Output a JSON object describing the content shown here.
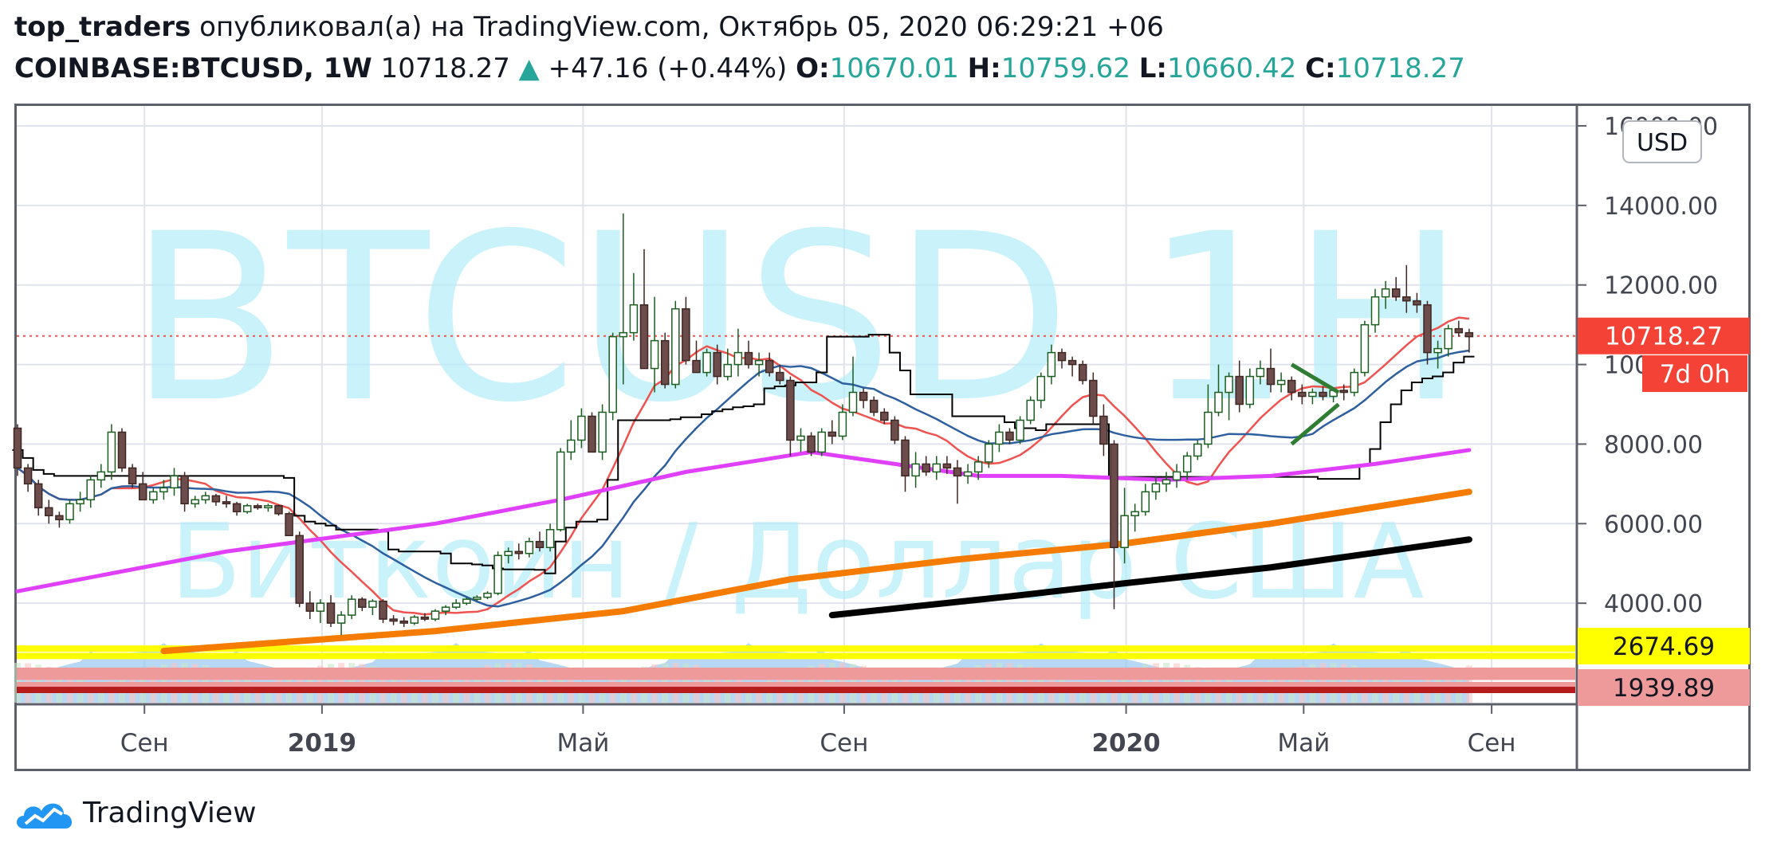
{
  "header": {
    "user": "top_traders",
    "published_text": "опубликовал(а) на TradingView.com, Октябрь 05, 2020 06:29:21 +06",
    "symbol": "COINBASE:BTCUSD, 1W",
    "last": "10718.27",
    "change": "+47.16 (+0.44%)",
    "open_label": "O:",
    "open": "10670.01",
    "high_label": "H:",
    "high": "10759.62",
    "low_label": "L:",
    "low": "10660.42",
    "close_label": "C:",
    "close": "10718.27"
  },
  "footer": {
    "brand": "TradingView"
  },
  "colors": {
    "up": "#26a69a",
    "down": "#ef5350",
    "candle_down_fill": "#6d4c4c",
    "candle_up_stroke": "#1b5e20"
  },
  "chart_data": {
    "type": "candlestick",
    "watermark": "BTCUSD 1H",
    "watermark_sub": "Биткоин / Доллар США",
    "currency": "USD",
    "ylim": [
      1500,
      16500
    ],
    "y_ticks": [
      4000,
      6000,
      8000,
      10000,
      12000,
      14000,
      16000
    ],
    "y_tick_labels": [
      "4000.00",
      "6000.00",
      "8000.00",
      "10000.00",
      "12000.00",
      "14000.00",
      "16000.00"
    ],
    "x_labels": [
      {
        "label": "Сен",
        "date": "2018-09",
        "bold": false
      },
      {
        "label": "2019",
        "date": "2019-01",
        "bold": true
      },
      {
        "label": "Май",
        "date": "2019-05",
        "bold": false
      },
      {
        "label": "Сен",
        "date": "2019-09",
        "bold": false
      },
      {
        "label": "2020",
        "date": "2020-01",
        "bold": true
      },
      {
        "label": "Май",
        "date": "2020-05",
        "bold": false
      },
      {
        "label": "Сен",
        "date": "2020-09",
        "bold": false
      }
    ],
    "price_badges": [
      {
        "value": 10718.27,
        "label": "10718.27",
        "bg": "#f44336",
        "fg": "#ffffff"
      },
      {
        "value": 9850,
        "label": "7d 0h",
        "bg": "#f44336",
        "fg": "#ffffff"
      },
      {
        "value": 2674.69,
        "label": "2674.69",
        "bg": "#ffff00",
        "fg": "#131722"
      },
      {
        "value": 1939.89,
        "label": "1939.89",
        "bg": "#ef9a9a",
        "fg": "#131722"
      }
    ],
    "horizontal_levels": [
      {
        "value": 2860,
        "color": "#ffff00"
      },
      {
        "value": 2674.69,
        "color": "#ffff00"
      },
      {
        "value": 2300,
        "color": "#ef9a9a"
      },
      {
        "value": 2150,
        "color": "#ef9a9a"
      },
      {
        "value": 1939.89,
        "color": "#ef9a9a"
      },
      {
        "value": 1820,
        "color": "#b71c1c"
      }
    ],
    "candles_ohlc": [
      [
        8400,
        8500,
        7200,
        7400
      ],
      [
        7400,
        7500,
        6800,
        7000
      ],
      [
        7000,
        7100,
        6200,
        6400
      ],
      [
        6400,
        6600,
        6000,
        6200
      ],
      [
        6200,
        6300,
        5900,
        6100
      ],
      [
        6100,
        6600,
        6000,
        6500
      ],
      [
        6500,
        6800,
        6300,
        6600
      ],
      [
        6600,
        7200,
        6400,
        7100
      ],
      [
        7100,
        7500,
        6900,
        7300
      ],
      [
        7300,
        8500,
        7100,
        8300
      ],
      [
        8300,
        8400,
        7300,
        7400
      ],
      [
        7400,
        7500,
        6900,
        7000
      ],
      [
        7000,
        7300,
        6600,
        6600
      ],
      [
        6600,
        6900,
        6500,
        6800
      ],
      [
        6800,
        7100,
        6600,
        6900
      ],
      [
        6900,
        7400,
        6700,
        7200
      ],
      [
        7200,
        7300,
        6300,
        6500
      ],
      [
        6500,
        6700,
        6400,
        6600
      ],
      [
        6600,
        6800,
        6500,
        6700
      ],
      [
        6700,
        6750,
        6450,
        6550
      ],
      [
        6550,
        6700,
        6400,
        6500
      ],
      [
        6500,
        6550,
        6200,
        6300
      ],
      [
        6300,
        6500,
        6250,
        6450
      ],
      [
        6450,
        6500,
        6350,
        6400
      ],
      [
        6400,
        6500,
        6300,
        6450
      ],
      [
        6450,
        6480,
        6200,
        6250
      ],
      [
        6250,
        6300,
        5800,
        5700
      ],
      [
        5700,
        5800,
        3900,
        4000
      ],
      [
        4000,
        4300,
        3600,
        3800
      ],
      [
        3800,
        4100,
        3500,
        4000
      ],
      [
        4000,
        4200,
        3400,
        3500
      ],
      [
        3500,
        3800,
        3200,
        3700
      ],
      [
        3700,
        4200,
        3600,
        4100
      ],
      [
        4100,
        4150,
        3800,
        3900
      ],
      [
        3900,
        4100,
        3700,
        4050
      ],
      [
        4050,
        4100,
        3500,
        3600
      ],
      [
        3600,
        3700,
        3450,
        3550
      ],
      [
        3550,
        3650,
        3400,
        3500
      ],
      [
        3500,
        3700,
        3450,
        3650
      ],
      [
        3650,
        3750,
        3550,
        3600
      ],
      [
        3600,
        3850,
        3550,
        3800
      ],
      [
        3800,
        3950,
        3700,
        3900
      ],
      [
        3900,
        4100,
        3850,
        4000
      ],
      [
        4000,
        4150,
        3950,
        4100
      ],
      [
        4100,
        4200,
        4050,
        4150
      ],
      [
        4150,
        4300,
        4100,
        4250
      ],
      [
        4250,
        5300,
        4200,
        5200
      ],
      [
        5200,
        5400,
        5000,
        5300
      ],
      [
        5300,
        5500,
        5100,
        5250
      ],
      [
        5250,
        5650,
        5150,
        5550
      ],
      [
        5550,
        5800,
        5300,
        5400
      ],
      [
        5400,
        6000,
        5300,
        5850
      ],
      [
        5850,
        7900,
        5800,
        7800
      ],
      [
        7800,
        8600,
        7600,
        8100
      ],
      [
        8100,
        8900,
        7900,
        8700
      ],
      [
        8700,
        8800,
        7800,
        7800
      ],
      [
        7800,
        9000,
        7600,
        8800
      ],
      [
        8800,
        10800,
        8600,
        10700
      ],
      [
        10700,
        13800,
        9500,
        10800
      ],
      [
        10800,
        12300,
        10600,
        11500
      ],
      [
        11500,
        12900,
        10000,
        9900
      ],
      [
        9900,
        11700,
        9300,
        10600
      ],
      [
        10600,
        10800,
        9400,
        9500
      ],
      [
        9500,
        11600,
        9400,
        11400
      ],
      [
        11400,
        11700,
        10000,
        10100
      ],
      [
        10100,
        10600,
        9800,
        9800
      ],
      [
        9800,
        10400,
        9700,
        10300
      ],
      [
        10300,
        10500,
        9500,
        9700
      ],
      [
        9700,
        10400,
        9600,
        10000
      ],
      [
        10000,
        10900,
        9700,
        10300
      ],
      [
        10300,
        10600,
        9900,
        10000
      ],
      [
        10000,
        10300,
        9700,
        10100
      ],
      [
        10100,
        10300,
        9700,
        9800
      ],
      [
        9800,
        10000,
        9500,
        9600
      ],
      [
        9600,
        9700,
        7700,
        8100
      ],
      [
        8100,
        8400,
        7800,
        8200
      ],
      [
        8200,
        8300,
        7700,
        7800
      ],
      [
        7800,
        8400,
        7700,
        8300
      ],
      [
        8300,
        8600,
        8000,
        8200
      ],
      [
        8200,
        9000,
        8100,
        8800
      ],
      [
        8800,
        10200,
        8700,
        9300
      ],
      [
        9300,
        9400,
        8900,
        9100
      ],
      [
        9100,
        9200,
        8700,
        8800
      ],
      [
        8800,
        8900,
        8500,
        8600
      ],
      [
        8600,
        8700,
        8000,
        8100
      ],
      [
        8100,
        8200,
        6800,
        7200
      ],
      [
        7200,
        7800,
        6900,
        7500
      ],
      [
        7500,
        7700,
        7200,
        7300
      ],
      [
        7300,
        7700,
        7100,
        7500
      ],
      [
        7500,
        7700,
        7250,
        7400
      ],
      [
        7400,
        7600,
        6500,
        7200
      ],
      [
        7200,
        7500,
        7000,
        7300
      ],
      [
        7300,
        7700,
        7100,
        7550
      ],
      [
        7550,
        8100,
        7400,
        8000
      ],
      [
        8000,
        8500,
        7800,
        8300
      ],
      [
        8300,
        8400,
        8000,
        8100
      ],
      [
        8100,
        8700,
        8000,
        8600
      ],
      [
        8600,
        9200,
        8500,
        9100
      ],
      [
        9100,
        9800,
        8900,
        9700
      ],
      [
        9700,
        10500,
        9500,
        10300
      ],
      [
        10300,
        10400,
        9900,
        10100
      ],
      [
        10100,
        10200,
        9700,
        10000
      ],
      [
        10000,
        10100,
        9500,
        9600
      ],
      [
        9600,
        9800,
        8500,
        8700
      ],
      [
        8700,
        9000,
        7700,
        8000
      ],
      [
        8000,
        8100,
        3850,
        5400
      ],
      [
        5400,
        6900,
        5000,
        6200
      ],
      [
        6200,
        6500,
        5800,
        6300
      ],
      [
        6300,
        7000,
        6200,
        6800
      ],
      [
        6800,
        7200,
        6600,
        7000
      ],
      [
        7000,
        7300,
        6800,
        7100
      ],
      [
        7100,
        7500,
        6900,
        7300
      ],
      [
        7300,
        7800,
        7100,
        7700
      ],
      [
        7700,
        8100,
        7600,
        8000
      ],
      [
        8000,
        9500,
        7900,
        8800
      ],
      [
        8800,
        10000,
        8700,
        9300
      ],
      [
        9300,
        9800,
        8600,
        9700
      ],
      [
        9700,
        10100,
        8800,
        9000
      ],
      [
        9000,
        9900,
        8900,
        9700
      ],
      [
        9700,
        10100,
        9500,
        9900
      ],
      [
        9900,
        10400,
        9300,
        9500
      ],
      [
        9500,
        9800,
        9300,
        9600
      ],
      [
        9600,
        9700,
        9100,
        9300
      ],
      [
        9300,
        9500,
        9000,
        9200
      ],
      [
        9200,
        9400,
        9000,
        9300
      ],
      [
        9300,
        9450,
        9100,
        9200
      ],
      [
        9200,
        9400,
        9050,
        9350
      ],
      [
        9350,
        9500,
        9100,
        9300
      ],
      [
        9300,
        9900,
        9200,
        9800
      ],
      [
        9800,
        11100,
        9700,
        11000
      ],
      [
        11000,
        11900,
        10800,
        11700
      ],
      [
        11700,
        12100,
        11400,
        11900
      ],
      [
        11900,
        12200,
        11600,
        11700
      ],
      [
        11700,
        12500,
        11300,
        11600
      ],
      [
        11600,
        11800,
        11300,
        11500
      ],
      [
        11500,
        11600,
        10000,
        10300
      ],
      [
        10300,
        10600,
        9900,
        10400
      ],
      [
        10400,
        11000,
        10200,
        10900
      ],
      [
        10900,
        11100,
        10700,
        10800
      ],
      [
        10800,
        10900,
        10300,
        10700
      ]
    ],
    "series": [
      {
        "type": "red-ma",
        "color": "#ef5350"
      },
      {
        "type": "blue-ma",
        "color": "#2e5f9e"
      },
      {
        "name": "",
        "color": "#e040fb",
        "points": [
          [
            0,
            4300
          ],
          [
            20,
            5300
          ],
          [
            40,
            6000
          ],
          [
            52,
            6600
          ],
          [
            64,
            7300
          ],
          [
            76,
            7800
          ],
          [
            84,
            7500
          ],
          [
            92,
            7200
          ],
          [
            100,
            7200
          ],
          [
            110,
            7100
          ],
          [
            120,
            7200
          ],
          [
            130,
            7500
          ],
          [
            139,
            7850
          ]
        ]
      },
      {
        "name": "",
        "color": "#f57c00",
        "points": [
          [
            14,
            2800
          ],
          [
            40,
            3300
          ],
          [
            58,
            3800
          ],
          [
            74,
            4600
          ],
          [
            90,
            5100
          ],
          [
            106,
            5500
          ],
          [
            120,
            6000
          ],
          [
            139,
            6800
          ]
        ]
      },
      {
        "name": "",
        "color": "#000000",
        "points": [
          [
            78,
            3700
          ],
          [
            96,
            4200
          ],
          [
            106,
            4500
          ],
          [
            120,
            4900
          ],
          [
            139,
            5600
          ]
        ]
      }
    ]
  }
}
